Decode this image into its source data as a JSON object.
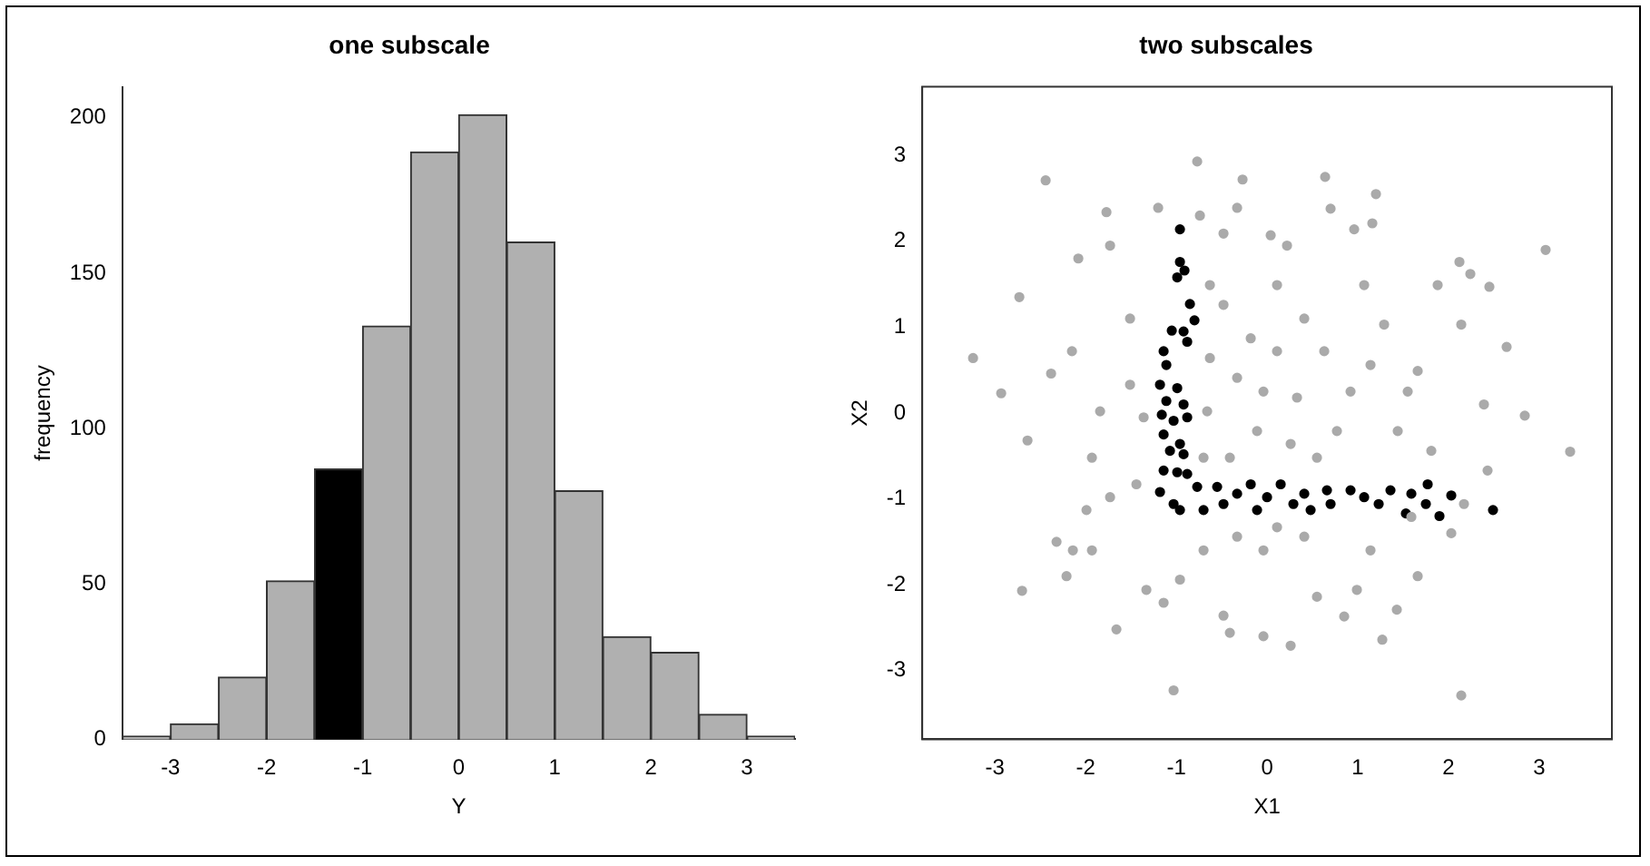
{
  "chart_data": [
    {
      "type": "histogram",
      "title": "one subscale",
      "xlabel": "Y",
      "ylabel": "frequency",
      "bins": [
        -3.5,
        -3,
        -2.5,
        -2,
        -1.5,
        -1,
        -0.5,
        0,
        0.5,
        1,
        1.5,
        2,
        2.5,
        3,
        3.5
      ],
      "values": [
        1,
        5,
        20,
        51,
        87,
        133,
        189,
        201,
        160,
        80,
        33,
        28,
        8,
        1
      ],
      "colors": [
        "#b0b0b0",
        "#b0b0b0",
        "#b0b0b0",
        "#b0b0b0",
        "#000000",
        "#b0b0b0",
        "#b0b0b0",
        "#b0b0b0",
        "#b0b0b0",
        "#b0b0b0",
        "#b0b0b0",
        "#b0b0b0",
        "#b0b0b0",
        "#b0b0b0"
      ],
      "xlim": [
        -3.5,
        3.5
      ],
      "xticks": [
        -3,
        -2,
        -1,
        0,
        1,
        2,
        3
      ],
      "ylim": [
        0,
        210
      ],
      "yticks": [
        0,
        50,
        100,
        150,
        200
      ]
    },
    {
      "type": "scatter",
      "title": "two subscales",
      "xlabel": "X1",
      "ylabel": "X2",
      "marker": "circle",
      "xlim": [
        -3.8,
        3.8
      ],
      "xticks": [
        -3,
        -2,
        -1,
        0,
        1,
        2,
        3
      ],
      "ylim": [
        -3.8,
        3.8
      ],
      "yticks": [
        -3,
        -2,
        -1,
        0,
        1,
        2,
        3
      ],
      "series": [
        {
          "color": "#aaaaaa",
          "x": [
            -3.24,
            -2.93,
            -2.44,
            -2.73,
            -2.64,
            -2.7,
            -2.38,
            -2.21,
            -2.32,
            -2.08,
            -2.15,
            -1.93,
            -2.14,
            -1.77,
            -1.73,
            -1.66,
            -1.84,
            -1.99,
            -1.51,
            -1.44,
            -1.2,
            -1.33,
            -1.14,
            -1.03,
            -0.96,
            -0.77,
            -0.74,
            -0.48,
            -0.63,
            -0.33,
            -0.27,
            -0.48,
            -0.41,
            -0.04,
            0.26,
            0.04,
            0.22,
            0.64,
            0.7,
            0.96,
            1.2,
            1.16,
            0.85,
            1.27,
            1.43,
            2.14,
            2.12,
            2.24,
            2.45,
            2.64,
            2.84,
            3.07,
            3.34,
            2.43,
            2.03,
            2.14,
            1.88,
            1.66,
            1.55,
            1.44,
            1.29,
            1.14,
            1.07,
            0.92,
            0.77,
            0.63,
            0.55,
            0.41,
            0.33,
            0.26,
            0.11,
            0.11,
            -0.04,
            -0.11,
            -0.18,
            -0.33,
            -0.41,
            -0.48,
            -0.63,
            -0.66,
            -0.7,
            -0.04,
            0.41,
            0.11,
            -0.33,
            -0.7,
            1.14,
            0.99,
            0.55,
            1.66,
            1.81,
            2.17,
            2.39,
            1.59,
            -1.51,
            -1.36,
            -1.73,
            -1.93
          ],
          "values": [
            0.64,
            0.23,
            2.71,
            1.35,
            -0.32,
            -2.07,
            0.46,
            -1.9,
            -1.5,
            1.8,
            0.72,
            -0.52,
            -1.6,
            2.34,
            1.95,
            -2.52,
            0.02,
            -1.13,
            1.1,
            -0.83,
            2.39,
            -2.06,
            -2.21,
            -3.23,
            -1.94,
            2.93,
            2.3,
            2.09,
            1.49,
            2.39,
            2.72,
            -2.36,
            -2.56,
            -2.6,
            -2.71,
            2.07,
            1.95,
            2.75,
            2.38,
            2.14,
            2.55,
            2.21,
            -2.37,
            -2.64,
            -2.29,
            -3.29,
            1.76,
            1.62,
            1.47,
            0.77,
            -0.03,
            1.9,
            -0.45,
            -0.67,
            -1.4,
            1.03,
            1.49,
            0.49,
            0.25,
            -0.21,
            1.03,
            0.56,
            1.49,
            0.25,
            -0.21,
            0.72,
            -0.52,
            1.1,
            0.18,
            -0.36,
            1.49,
            0.72,
            0.25,
            -0.21,
            0.87,
            0.41,
            -0.52,
            1.26,
            0.64,
            0.02,
            -0.52,
            -1.6,
            -1.44,
            -1.33,
            -1.44,
            -1.6,
            -1.6,
            -2.06,
            -2.14,
            -1.9,
            -0.44,
            -1.06,
            0.1,
            -1.21,
            0.33,
            -0.05,
            -0.98,
            -1.6
          ]
        },
        {
          "color": "#000000",
          "x": [
            -0.96,
            -0.96,
            -0.91,
            -0.99,
            -0.85,
            -0.8,
            -1.05,
            -0.92,
            -0.88,
            -1.14,
            -1.11,
            -1.18,
            -0.99,
            -1.11,
            -0.92,
            -1.16,
            -1.03,
            -0.88,
            -1.14,
            -0.96,
            -1.07,
            -0.92,
            -1.14,
            -0.99,
            -0.88,
            -1.18,
            -1.03,
            -0.96,
            -0.77,
            -0.7,
            -0.55,
            -0.48,
            -0.33,
            -0.18,
            -0.11,
            0,
            0.15,
            0.29,
            0.41,
            0.48,
            0.66,
            0.7,
            0.92,
            1.07,
            1.23,
            1.36,
            1.53,
            1.59,
            1.77,
            1.75,
            1.9,
            2.03,
            2.49
          ],
          "values": [
            2.14,
            1.76,
            1.66,
            1.58,
            1.27,
            1.08,
            0.96,
            0.95,
            0.83,
            0.72,
            0.56,
            0.33,
            0.29,
            0.14,
            0.1,
            -0.02,
            -0.09,
            -0.05,
            -0.25,
            -0.36,
            -0.44,
            -0.48,
            -0.67,
            -0.69,
            -0.71,
            -0.92,
            -1.06,
            -1.13,
            -0.86,
            -1.13,
            -0.86,
            -1.06,
            -0.94,
            -0.83,
            -1.13,
            -0.98,
            -0.83,
            -1.06,
            -0.94,
            -1.13,
            -0.9,
            -1.06,
            -0.9,
            -0.98,
            -1.06,
            -0.9,
            -1.17,
            -0.94,
            -0.83,
            -1.06,
            -1.2,
            -0.96,
            -1.13
          ]
        }
      ]
    }
  ]
}
